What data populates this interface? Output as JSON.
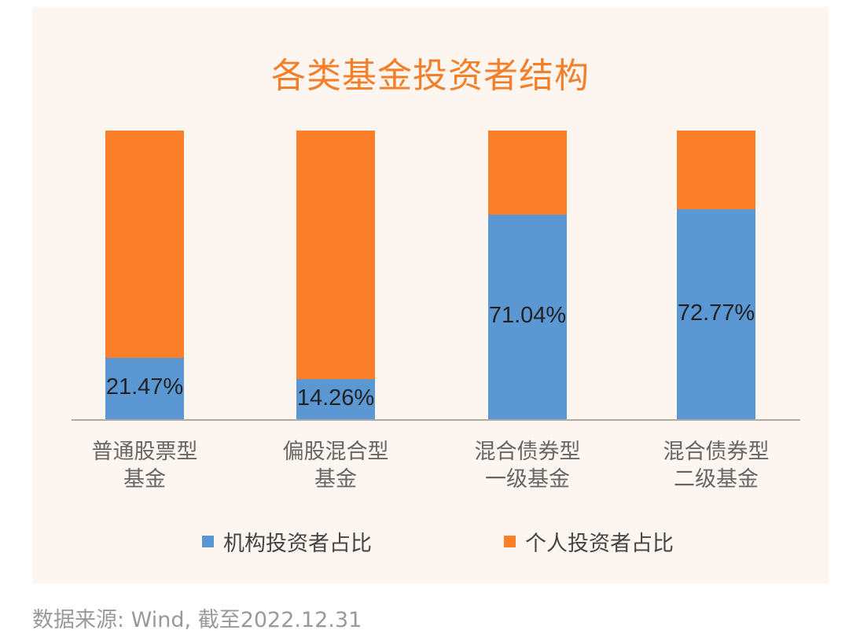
{
  "chart_data": {
    "type": "bar",
    "stacked": true,
    "percent_stacked": true,
    "title": "各类基金投资者结构",
    "categories": [
      "普通股票型\n基金",
      "偏股混合型\n基金",
      "混合债券型\n一级基金",
      "混合债券型\n二级基金"
    ],
    "category_lines": [
      [
        "普通股票型",
        "基金"
      ],
      [
        "偏股混合型",
        "基金"
      ],
      [
        "混合债券型",
        "一级基金"
      ],
      [
        "混合债券型",
        "二级基金"
      ]
    ],
    "series": [
      {
        "name": "机构投资者占比",
        "color": "#5b97d3",
        "values": [
          21.47,
          14.26,
          71.04,
          72.77
        ]
      },
      {
        "name": "个人投资者占比",
        "color": "#fb7e29",
        "values": [
          78.53,
          85.74,
          28.96,
          27.23
        ]
      }
    ],
    "data_labels": [
      "21.47%",
      "14.26%",
      "71.04%",
      "72.77%"
    ],
    "ylim": [
      0,
      100
    ],
    "xlabel": "",
    "ylabel": "",
    "grid": false,
    "legend_position": "bottom"
  },
  "title": "各类基金投资者结构",
  "legend": [
    {
      "label": "机构投资者占比",
      "color": "#5b97d3"
    },
    {
      "label": "个人投资者占比",
      "color": "#fb7e29"
    }
  ],
  "source": "数据来源: Wind, 截至2022.12.31",
  "colors": {
    "accent": "#f47f2a",
    "institutional": "#5b97d3",
    "individual": "#fb7e29",
    "panel_bg": "#fdf6f0"
  }
}
